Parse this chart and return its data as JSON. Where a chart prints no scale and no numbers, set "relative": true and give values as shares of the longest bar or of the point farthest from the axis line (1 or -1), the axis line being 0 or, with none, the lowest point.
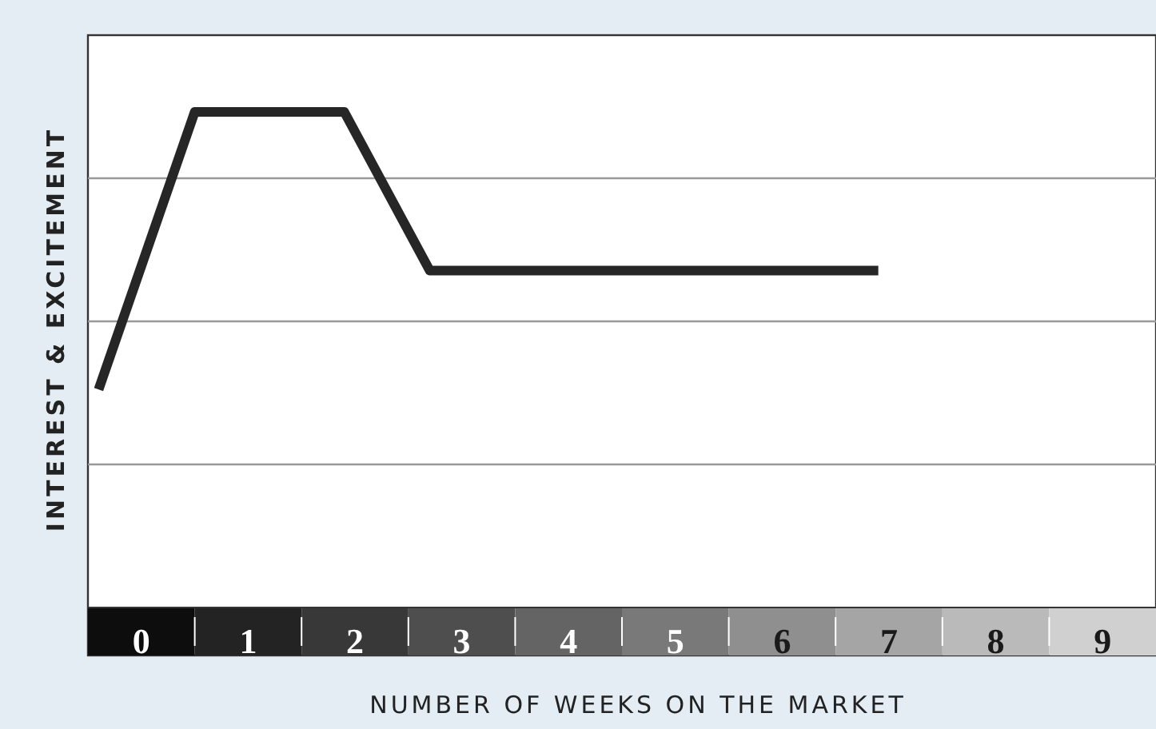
{
  "chart_data": {
    "type": "line",
    "xlabel": "NUMBER OF WEEKS ON THE MARKET",
    "ylabel": "INTEREST & EXCITEMENT",
    "relative": true,
    "grid": true,
    "marker": "none",
    "line_style": "solid",
    "xlim": [
      -0.5,
      9.5
    ],
    "xticks": [
      0,
      1,
      2,
      3,
      4,
      5,
      6,
      7,
      8,
      9
    ],
    "series": [
      {
        "color": "#262626",
        "x": [
          -0.4,
          0.5,
          1.9,
          2.7,
          6.9
        ],
        "values": [
          0.44,
          1,
          1,
          0.68,
          0.68
        ]
      }
    ]
  }
}
